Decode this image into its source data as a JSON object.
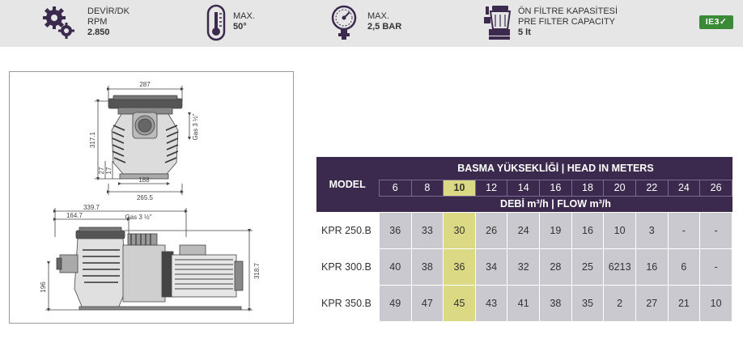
{
  "specs": [
    {
      "icon": "gears-icon",
      "line1": "DEVİR/DK",
      "line2": "RPM",
      "value": "2.850"
    },
    {
      "icon": "thermometer-icon",
      "line1": "MAX.",
      "line2": "",
      "value": "50°"
    },
    {
      "icon": "pressure-gauge-icon",
      "line1": "MAX.",
      "line2": "",
      "value": "2,5 BAR"
    },
    {
      "icon": "pre-filter-icon",
      "line1": "ÖN FİLTRE KAPASİTESİ",
      "line2": "PRE FILTER CAPACITY",
      "value": "5 lt"
    }
  ],
  "badge": {
    "text": "IE3",
    "check": "✓",
    "color": "#3a8b37"
  },
  "drawing": {
    "front": {
      "width": "287",
      "height": "317.1",
      "d1": "27",
      "d2": "17",
      "base": "188",
      "total": "265.5",
      "gas": "Gas 3 ½\""
    },
    "side": {
      "d1": "339.7",
      "d2": "164.7",
      "gas": "Gas 3 ½\"",
      "h1": "196",
      "h2": "318.7"
    }
  },
  "table": {
    "model_header": "MODEL",
    "head_title": "BASMA YÜKSEKLİĞİ | HEAD IN METERS",
    "flow_title": "DEBİ m³/h | FLOW m³/h",
    "heads": [
      "6",
      "8",
      "10",
      "12",
      "14",
      "16",
      "18",
      "20",
      "22",
      "24",
      "26"
    ],
    "highlight_index": 2,
    "highlight_color": "#dcd985",
    "header_color": "#3b2a4e",
    "rows": [
      {
        "model": "KPR 250.B",
        "values": [
          "36",
          "33",
          "30",
          "26",
          "24",
          "19",
          "16",
          "10",
          "3",
          "-",
          "-"
        ]
      },
      {
        "model": "KPR 300.B",
        "values": [
          "40",
          "38",
          "36",
          "34",
          "32",
          "28",
          "25",
          "6213",
          "16",
          "6",
          "-"
        ]
      },
      {
        "model": "KPR 350.B",
        "values": [
          "49",
          "47",
          "45",
          "43",
          "41",
          "38",
          "35",
          "2",
          "27",
          "21",
          "10"
        ]
      }
    ]
  }
}
